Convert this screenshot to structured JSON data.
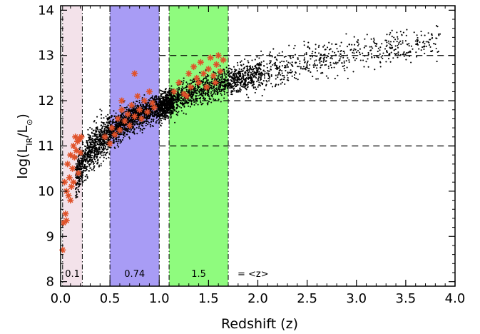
{
  "chart_data": {
    "type": "scatter",
    "xlabel": "Redshift (z)",
    "ylabel": "log(L_IR/L_⊙)",
    "xlim": [
      0.0,
      4.0
    ],
    "ylim": [
      7.9,
      14.1
    ],
    "x_ticks": [
      "0.0",
      "0.5",
      "1.0",
      "1.5",
      "2.0",
      "2.5",
      "3.0",
      "3.5",
      "4.0"
    ],
    "y_ticks": [
      "8",
      "9",
      "10",
      "11",
      "12",
      "13",
      "14"
    ],
    "bands": [
      {
        "label": "0.1",
        "z_range": [
          0.02,
          0.22
        ],
        "color": "#f3e2ea"
      },
      {
        "label": "0.74",
        "z_range": [
          0.5,
          1.0
        ],
        "color": "#a89cf5"
      },
      {
        "label": "1.5",
        "z_range": [
          1.1,
          1.7
        ],
        "color": "#8ffb7e"
      }
    ],
    "band_note": "= <z>",
    "reference_lines": [
      11,
      12,
      13
    ],
    "series": [
      {
        "marker": "dot",
        "color": "#000000",
        "trend": [
          [
            0.05,
            9.9
          ],
          [
            0.15,
            10.3
          ],
          [
            0.3,
            10.9
          ],
          [
            0.5,
            11.3
          ],
          [
            0.75,
            11.65
          ],
          [
            1.0,
            11.85
          ],
          [
            1.25,
            12.1
          ],
          [
            1.5,
            12.3
          ],
          [
            2.0,
            12.6
          ],
          [
            2.5,
            12.85
          ],
          [
            3.0,
            13.05
          ],
          [
            3.5,
            13.25
          ],
          [
            3.8,
            13.35
          ]
        ]
      },
      {
        "marker": "asterisk",
        "color": "#e0522a",
        "points": [
          [
            0.02,
            8.7
          ],
          [
            0.03,
            9.3
          ],
          [
            0.05,
            9.5
          ],
          [
            0.06,
            9.35
          ],
          [
            0.08,
            9.9
          ],
          [
            0.04,
            10.2
          ],
          [
            0.07,
            10.6
          ],
          [
            0.09,
            10.3
          ],
          [
            0.1,
            10.8
          ],
          [
            0.11,
            10.1
          ],
          [
            0.12,
            10.5
          ],
          [
            0.13,
            11.0
          ],
          [
            0.14,
            10.75
          ],
          [
            0.15,
            11.2
          ],
          [
            0.16,
            10.9
          ],
          [
            0.17,
            11.1
          ],
          [
            0.18,
            10.4
          ],
          [
            0.19,
            11.15
          ],
          [
            0.2,
            10.85
          ],
          [
            0.21,
            11.2
          ],
          [
            0.06,
            10.0
          ],
          [
            0.1,
            9.8
          ],
          [
            0.13,
            10.2
          ],
          [
            0.45,
            11.2
          ],
          [
            0.5,
            11.05
          ],
          [
            0.52,
            11.4
          ],
          [
            0.55,
            11.25
          ],
          [
            0.58,
            11.6
          ],
          [
            0.6,
            11.35
          ],
          [
            0.62,
            11.8
          ],
          [
            0.65,
            11.55
          ],
          [
            0.68,
            11.7
          ],
          [
            0.7,
            11.45
          ],
          [
            0.72,
            11.9
          ],
          [
            0.75,
            11.65
          ],
          [
            0.78,
            12.1
          ],
          [
            0.8,
            11.8
          ],
          [
            0.82,
            11.6
          ],
          [
            0.85,
            12.0
          ],
          [
            0.88,
            11.75
          ],
          [
            0.9,
            12.2
          ],
          [
            0.93,
            11.95
          ],
          [
            0.95,
            11.85
          ],
          [
            0.75,
            12.6
          ],
          [
            0.62,
            12.0
          ],
          [
            1.15,
            12.2
          ],
          [
            1.2,
            12.4
          ],
          [
            1.25,
            12.15
          ],
          [
            1.3,
            12.6
          ],
          [
            1.32,
            12.3
          ],
          [
            1.35,
            12.75
          ],
          [
            1.38,
            12.5
          ],
          [
            1.4,
            12.4
          ],
          [
            1.42,
            12.85
          ],
          [
            1.45,
            12.6
          ],
          [
            1.48,
            12.3
          ],
          [
            1.5,
            12.7
          ],
          [
            1.52,
            12.95
          ],
          [
            1.55,
            12.55
          ],
          [
            1.58,
            12.8
          ],
          [
            1.6,
            13.0
          ],
          [
            1.62,
            12.65
          ],
          [
            1.65,
            12.9
          ],
          [
            1.28,
            12.1
          ],
          [
            1.57,
            12.4
          ]
        ]
      }
    ]
  }
}
